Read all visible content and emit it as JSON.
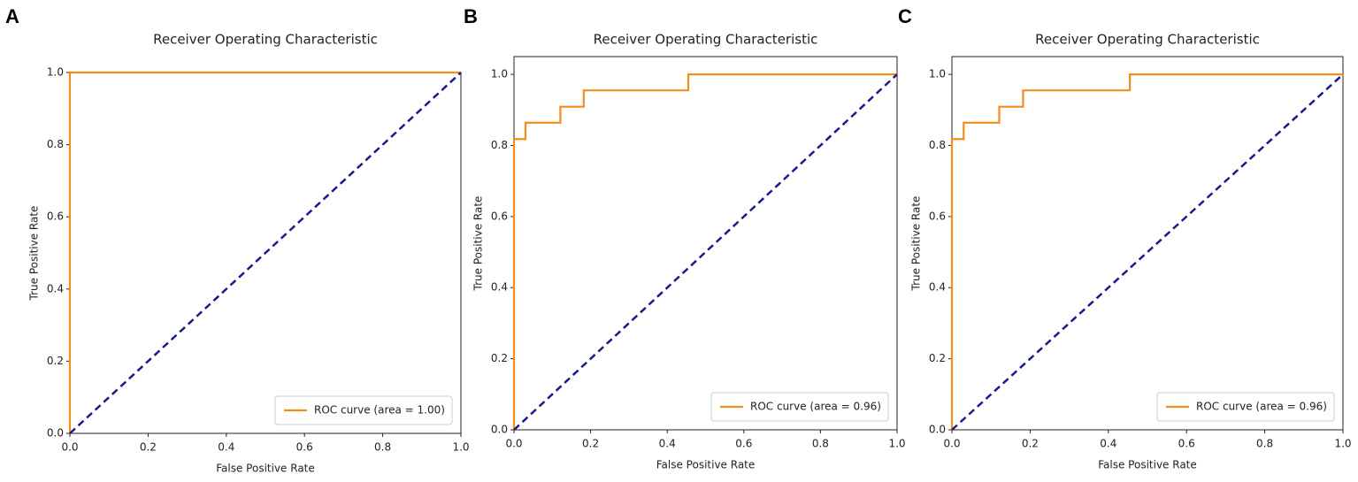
{
  "chart_data": [
    {
      "type": "line",
      "panel": "A",
      "title": "Receiver Operating Characteristic",
      "xlabel": "False Positive Rate",
      "ylabel": "True Positive Rate",
      "xlim": [
        0,
        1
      ],
      "ylim": [
        0,
        1
      ],
      "xticks": [
        {
          "value": 0,
          "label": "0.0"
        },
        {
          "value": 0.2,
          "label": "0.2"
        },
        {
          "value": 0.4,
          "label": "0.4"
        },
        {
          "value": 0.6,
          "label": "0.6"
        },
        {
          "value": 0.8,
          "label": "0.8"
        },
        {
          "value": 1,
          "label": "1.0"
        }
      ],
      "yticks": [
        {
          "value": 0,
          "label": "0.0"
        },
        {
          "value": 0.2,
          "label": "0.2"
        },
        {
          "value": 0.4,
          "label": "0.4"
        },
        {
          "value": 0.6,
          "label": "0.6"
        },
        {
          "value": 0.8,
          "label": "0.8"
        },
        {
          "value": 1,
          "label": "1.0"
        }
      ],
      "legend": "lower right",
      "series": [
        {
          "name": "ROC curve (area = 1.00)",
          "color": "#f28e1c",
          "x": [
            0,
            0,
            1
          ],
          "values": [
            0,
            1,
            1
          ]
        },
        {
          "color": "#1a1a8c",
          "dashed": true,
          "x": [
            0,
            1
          ],
          "values": [
            0,
            1
          ]
        }
      ]
    },
    {
      "type": "line",
      "panel": "B",
      "title": "Receiver Operating Characteristic",
      "xlabel": "False Positive Rate",
      "ylabel": "True Positive Rate",
      "xlim": [
        0,
        1
      ],
      "ylim": [
        0,
        1.05
      ],
      "xticks": [
        {
          "value": 0,
          "label": "0.0"
        },
        {
          "value": 0.2,
          "label": "0.2"
        },
        {
          "value": 0.4,
          "label": "0.4"
        },
        {
          "value": 0.6,
          "label": "0.6"
        },
        {
          "value": 0.8,
          "label": "0.8"
        },
        {
          "value": 1,
          "label": "1.0"
        }
      ],
      "yticks": [
        {
          "value": 0,
          "label": "0.0"
        },
        {
          "value": 0.2,
          "label": "0.2"
        },
        {
          "value": 0.4,
          "label": "0.4"
        },
        {
          "value": 0.6,
          "label": "0.6"
        },
        {
          "value": 0.8,
          "label": "0.8"
        },
        {
          "value": 1,
          "label": "1.0"
        }
      ],
      "legend": "lower right",
      "series": [
        {
          "name": "ROC curve (area = 0.96)",
          "color": "#f28e1c",
          "x": [
            0,
            0,
            0.03,
            0.03,
            0.121,
            0.121,
            0.182,
            0.182,
            0.455,
            0.455,
            1
          ],
          "values": [
            0,
            0.818,
            0.818,
            0.864,
            0.864,
            0.909,
            0.909,
            0.955,
            0.955,
            1,
            1
          ]
        },
        {
          "color": "#1a1a8c",
          "dashed": true,
          "x": [
            0,
            1
          ],
          "values": [
            0,
            1
          ]
        }
      ]
    },
    {
      "type": "line",
      "panel": "C",
      "title": "Receiver Operating Characteristic",
      "xlabel": "False Positive Rate",
      "ylabel": "True Positive Rate",
      "xlim": [
        0,
        1
      ],
      "ylim": [
        0,
        1.05
      ],
      "xticks": [
        {
          "value": 0,
          "label": "0.0"
        },
        {
          "value": 0.2,
          "label": "0.2"
        },
        {
          "value": 0.4,
          "label": "0.4"
        },
        {
          "value": 0.6,
          "label": "0.6"
        },
        {
          "value": 0.8,
          "label": "0.8"
        },
        {
          "value": 1,
          "label": "1.0"
        }
      ],
      "yticks": [
        {
          "value": 0,
          "label": "0.0"
        },
        {
          "value": 0.2,
          "label": "0.2"
        },
        {
          "value": 0.4,
          "label": "0.4"
        },
        {
          "value": 0.6,
          "label": "0.6"
        },
        {
          "value": 0.8,
          "label": "0.8"
        },
        {
          "value": 1,
          "label": "1.0"
        }
      ],
      "legend": "lower right",
      "series": [
        {
          "name": "ROC curve (area = 0.96)",
          "color": "#f28e1c",
          "x": [
            0,
            0,
            0.03,
            0.03,
            0.121,
            0.121,
            0.182,
            0.182,
            0.455,
            0.455,
            1
          ],
          "values": [
            0,
            0.818,
            0.818,
            0.864,
            0.864,
            0.909,
            0.909,
            0.955,
            0.955,
            1,
            1
          ]
        },
        {
          "color": "#1a1a8c",
          "dashed": true,
          "x": [
            0,
            1
          ],
          "values": [
            0,
            1
          ]
        }
      ]
    }
  ]
}
